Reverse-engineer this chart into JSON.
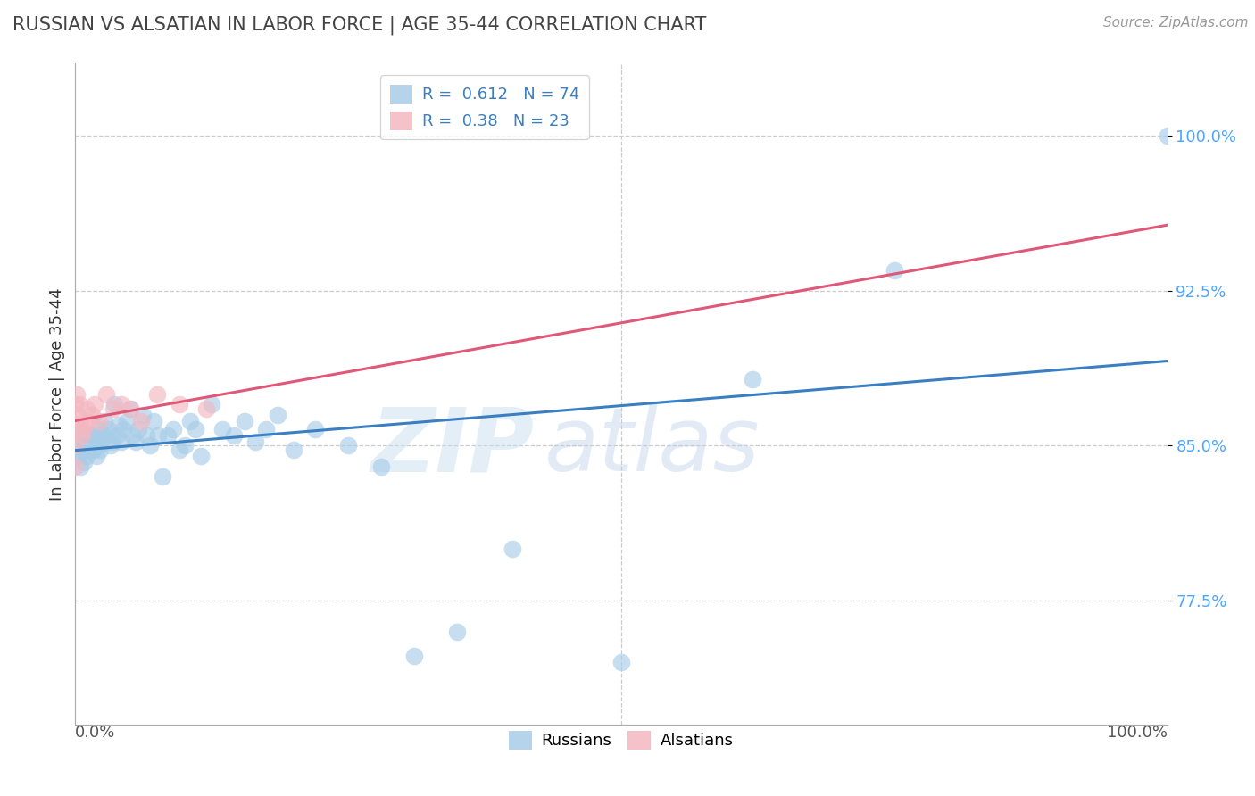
{
  "title": "RUSSIAN VS ALSATIAN IN LABOR FORCE | AGE 35-44 CORRELATION CHART",
  "source": "Source: ZipAtlas.com",
  "ylabel": "In Labor Force | Age 35-44",
  "ytick_labels": [
    "77.5%",
    "85.0%",
    "92.5%",
    "100.0%"
  ],
  "ytick_values": [
    0.775,
    0.85,
    0.925,
    1.0
  ],
  "xlim": [
    0.0,
    1.0
  ],
  "ylim": [
    0.715,
    1.035
  ],
  "watermark_zip": "ZIP",
  "watermark_atlas": "atlas",
  "russian_R": 0.612,
  "russian_N": 74,
  "alsatian_R": 0.38,
  "alsatian_N": 23,
  "russians_x": [
    0.0,
    0.0,
    0.002,
    0.003,
    0.003,
    0.004,
    0.005,
    0.005,
    0.006,
    0.007,
    0.008,
    0.009,
    0.01,
    0.01,
    0.011,
    0.012,
    0.013,
    0.014,
    0.015,
    0.016,
    0.017,
    0.018,
    0.019,
    0.02,
    0.021,
    0.022,
    0.023,
    0.025,
    0.027,
    0.028,
    0.03,
    0.032,
    0.034,
    0.036,
    0.038,
    0.04,
    0.042,
    0.044,
    0.047,
    0.05,
    0.052,
    0.055,
    0.058,
    0.062,
    0.065,
    0.068,
    0.072,
    0.076,
    0.08,
    0.085,
    0.09,
    0.095,
    0.1,
    0.105,
    0.11,
    0.115,
    0.125,
    0.135,
    0.145,
    0.155,
    0.165,
    0.175,
    0.185,
    0.2,
    0.22,
    0.25,
    0.28,
    0.31,
    0.35,
    0.4,
    0.5,
    0.62,
    0.75,
    1.0
  ],
  "russians_y": [
    0.855,
    0.86,
    0.845,
    0.85,
    0.858,
    0.848,
    0.84,
    0.855,
    0.852,
    0.848,
    0.842,
    0.85,
    0.856,
    0.845,
    0.85,
    0.854,
    0.848,
    0.855,
    0.852,
    0.848,
    0.855,
    0.85,
    0.845,
    0.855,
    0.858,
    0.85,
    0.848,
    0.855,
    0.862,
    0.855,
    0.858,
    0.85,
    0.852,
    0.87,
    0.855,
    0.86,
    0.852,
    0.858,
    0.862,
    0.868,
    0.855,
    0.852,
    0.858,
    0.865,
    0.855,
    0.85,
    0.862,
    0.855,
    0.835,
    0.855,
    0.858,
    0.848,
    0.85,
    0.862,
    0.858,
    0.845,
    0.87,
    0.858,
    0.855,
    0.862,
    0.852,
    0.858,
    0.865,
    0.848,
    0.858,
    0.85,
    0.84,
    0.748,
    0.76,
    0.8,
    0.745,
    0.882,
    0.935,
    1.0
  ],
  "alsatians_x": [
    0.0,
    0.0,
    0.0,
    0.001,
    0.002,
    0.003,
    0.004,
    0.005,
    0.006,
    0.008,
    0.01,
    0.012,
    0.015,
    0.018,
    0.022,
    0.028,
    0.035,
    0.042,
    0.05,
    0.06,
    0.075,
    0.095,
    0.12
  ],
  "alsatians_y": [
    0.87,
    0.85,
    0.84,
    0.875,
    0.865,
    0.858,
    0.87,
    0.862,
    0.855,
    0.858,
    0.868,
    0.862,
    0.865,
    0.87,
    0.862,
    0.875,
    0.868,
    0.87,
    0.868,
    0.862,
    0.875,
    0.87,
    0.868
  ],
  "russian_color": "#a8cde8",
  "alsatian_color": "#f4b8c1",
  "russian_line_color": "#3a7fc1",
  "alsatian_line_color": "#e05878",
  "background_color": "#ffffff",
  "grid_color": "#cccccc",
  "title_color": "#444444",
  "source_color": "#999999"
}
